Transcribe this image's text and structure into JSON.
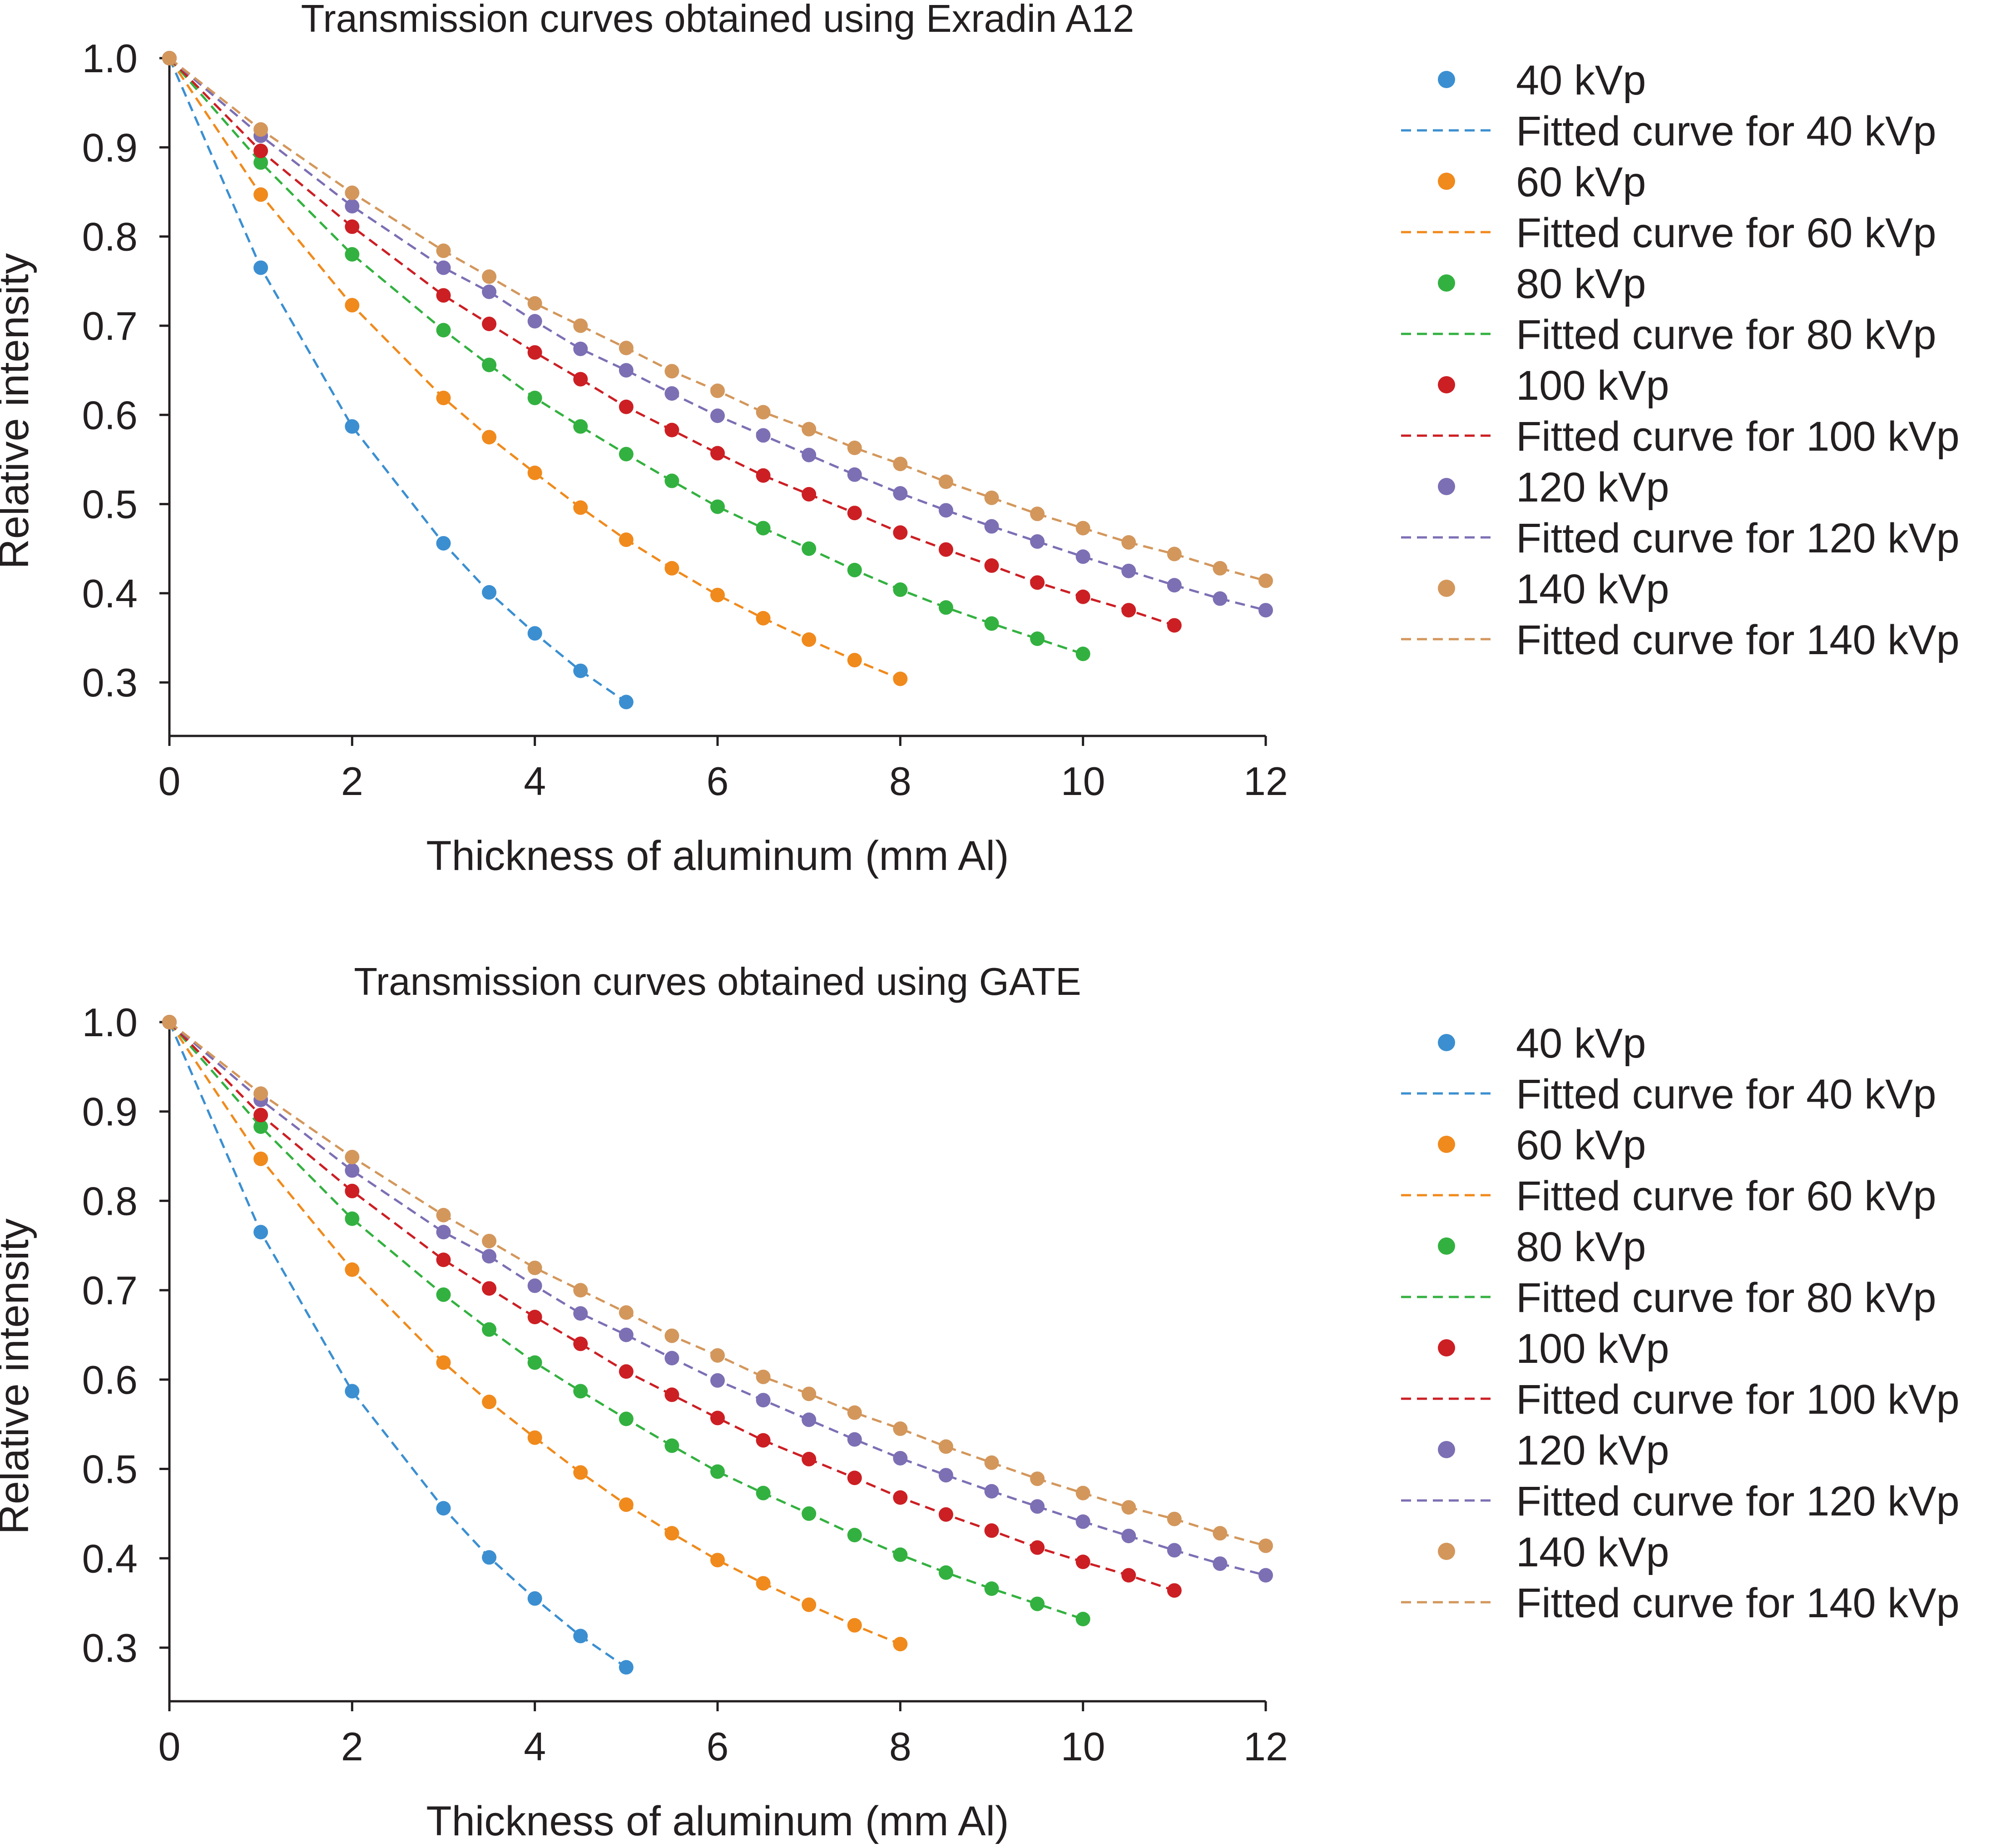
{
  "chart_data": [
    {
      "type": "scatter",
      "title": "Transmission curves obtained using Exradin A12",
      "xlabel": "Thickness of aluminum (mm Al)",
      "ylabel": "Relative intensity",
      "xlim": [
        0,
        12
      ],
      "ylim": [
        0.24,
        1.0
      ],
      "xticks": [
        0,
        2,
        4,
        6,
        8,
        10,
        12
      ],
      "yticks": [
        0.3,
        0.4,
        0.5,
        0.6,
        0.7,
        0.8,
        0.9,
        1.0
      ],
      "xtick_labels": [
        "0",
        "2",
        "4",
        "6",
        "8",
        "10",
        "12"
      ],
      "ytick_labels": [
        "0.3",
        "0.4",
        "0.5",
        "0.6",
        "0.7",
        "0.8",
        "0.9",
        "1.0"
      ],
      "legend_position": "right",
      "series": [
        {
          "name": "40 kVp",
          "fit_name": "Fitted curve for 40 kVp",
          "color": "#3b8fd1",
          "x": [
            0,
            1,
            2,
            3,
            3.5,
            4,
            4.5,
            5
          ],
          "y": [
            1.0,
            0.765,
            0.587,
            0.456,
            0.401,
            0.355,
            0.313,
            0.278
          ]
        },
        {
          "name": "60 kVp",
          "fit_name": "Fitted curve for 60 kVp",
          "color": "#f08a1c",
          "x": [
            0,
            1,
            2,
            3,
            3.5,
            4,
            4.5,
            5,
            5.5,
            6,
            6.5,
            7,
            7.5,
            8
          ],
          "y": [
            1.0,
            0.847,
            0.723,
            0.619,
            0.575,
            0.535,
            0.496,
            0.46,
            0.428,
            0.398,
            0.372,
            0.348,
            0.325,
            0.304
          ]
        },
        {
          "name": "80 kVp",
          "fit_name": "Fitted curve for 80 kVp",
          "color": "#33b140",
          "x": [
            0,
            1,
            2,
            3,
            3.5,
            4,
            4.5,
            5,
            5.5,
            6,
            6.5,
            7,
            7.5,
            8,
            8.5,
            9,
            9.5,
            10
          ],
          "y": [
            1.0,
            0.883,
            0.78,
            0.695,
            0.656,
            0.619,
            0.587,
            0.556,
            0.526,
            0.497,
            0.473,
            0.45,
            0.426,
            0.404,
            0.384,
            0.366,
            0.349,
            0.332
          ]
        },
        {
          "name": "100 kVp",
          "fit_name": "Fitted curve for 100 kVp",
          "color": "#cc1f24",
          "x": [
            0,
            1,
            2,
            3,
            3.5,
            4,
            4.5,
            5,
            5.5,
            6,
            6.5,
            7,
            7.5,
            8,
            8.5,
            9,
            9.5,
            10,
            10.5,
            11
          ],
          "y": [
            1.0,
            0.896,
            0.811,
            0.734,
            0.702,
            0.67,
            0.64,
            0.609,
            0.583,
            0.557,
            0.532,
            0.511,
            0.49,
            0.468,
            0.449,
            0.431,
            0.412,
            0.396,
            0.381,
            0.364
          ]
        },
        {
          "name": "120 kVp",
          "fit_name": "Fitted curve for 120 kVp",
          "color": "#7d6fb4",
          "x": [
            0,
            1,
            2,
            3,
            3.5,
            4,
            4.5,
            5,
            5.5,
            6,
            6.5,
            7,
            7.5,
            8,
            8.5,
            9,
            9.5,
            10,
            10.5,
            11,
            11.5,
            12
          ],
          "y": [
            1.0,
            0.913,
            0.834,
            0.765,
            0.738,
            0.705,
            0.674,
            0.65,
            0.624,
            0.599,
            0.577,
            0.555,
            0.533,
            0.512,
            0.493,
            0.475,
            0.458,
            0.441,
            0.425,
            0.409,
            0.394,
            0.381
          ]
        },
        {
          "name": "140 kVp",
          "fit_name": "Fitted curve for 140 kVp",
          "color": "#d3975c",
          "x": [
            0,
            1,
            2,
            3,
            3.5,
            4,
            4.5,
            5,
            5.5,
            6,
            6.5,
            7,
            7.5,
            8,
            8.5,
            9,
            9.5,
            10,
            10.5,
            11,
            11.5,
            12
          ],
          "y": [
            1.0,
            0.92,
            0.849,
            0.784,
            0.755,
            0.725,
            0.7,
            0.675,
            0.649,
            0.627,
            0.603,
            0.584,
            0.563,
            0.545,
            0.525,
            0.507,
            0.489,
            0.473,
            0.457,
            0.444,
            0.428,
            0.414
          ]
        }
      ]
    },
    {
      "type": "scatter",
      "title": "Transmission curves obtained using GATE",
      "xlabel": "Thickness of aluminum (mm Al)",
      "ylabel": "Relative intensity",
      "xlim": [
        0,
        12
      ],
      "ylim": [
        0.24,
        1.0
      ],
      "xticks": [
        0,
        2,
        4,
        6,
        8,
        10,
        12
      ],
      "yticks": [
        0.3,
        0.4,
        0.5,
        0.6,
        0.7,
        0.8,
        0.9,
        1.0
      ],
      "xtick_labels": [
        "0",
        "2",
        "4",
        "6",
        "8",
        "10",
        "12"
      ],
      "ytick_labels": [
        "0.3",
        "0.4",
        "0.5",
        "0.6",
        "0.7",
        "0.8",
        "0.9",
        "1.0"
      ],
      "legend_position": "right",
      "series": [
        {
          "name": "40 kVp",
          "fit_name": "Fitted curve for 40 kVp",
          "color": "#3b8fd1",
          "x": [
            0,
            1,
            2,
            3,
            3.5,
            4,
            4.5,
            5
          ],
          "y": [
            1.0,
            0.765,
            0.587,
            0.456,
            0.401,
            0.355,
            0.313,
            0.278
          ]
        },
        {
          "name": "60 kVp",
          "fit_name": "Fitted curve for 60 kVp",
          "color": "#f08a1c",
          "x": [
            0,
            1,
            2,
            3,
            3.5,
            4,
            4.5,
            5,
            5.5,
            6,
            6.5,
            7,
            7.5,
            8
          ],
          "y": [
            1.0,
            0.847,
            0.723,
            0.619,
            0.575,
            0.535,
            0.496,
            0.46,
            0.428,
            0.398,
            0.372,
            0.348,
            0.325,
            0.304
          ]
        },
        {
          "name": "80 kVp",
          "fit_name": "Fitted curve for 80 kVp",
          "color": "#33b140",
          "x": [
            0,
            1,
            2,
            3,
            3.5,
            4,
            4.5,
            5,
            5.5,
            6,
            6.5,
            7,
            7.5,
            8,
            8.5,
            9,
            9.5,
            10
          ],
          "y": [
            1.0,
            0.883,
            0.78,
            0.695,
            0.656,
            0.619,
            0.587,
            0.556,
            0.526,
            0.497,
            0.473,
            0.45,
            0.426,
            0.404,
            0.384,
            0.366,
            0.349,
            0.332
          ]
        },
        {
          "name": "100 kVp",
          "fit_name": "Fitted curve for 100 kVp",
          "color": "#cc1f24",
          "x": [
            0,
            1,
            2,
            3,
            3.5,
            4,
            4.5,
            5,
            5.5,
            6,
            6.5,
            7,
            7.5,
            8,
            8.5,
            9,
            9.5,
            10,
            10.5,
            11
          ],
          "y": [
            1.0,
            0.896,
            0.811,
            0.734,
            0.702,
            0.67,
            0.64,
            0.609,
            0.583,
            0.557,
            0.532,
            0.511,
            0.49,
            0.468,
            0.449,
            0.431,
            0.412,
            0.396,
            0.381,
            0.364
          ]
        },
        {
          "name": "120 kVp",
          "fit_name": "Fitted curve for 120 kVp",
          "color": "#7d6fb4",
          "x": [
            0,
            1,
            2,
            3,
            3.5,
            4,
            4.5,
            5,
            5.5,
            6,
            6.5,
            7,
            7.5,
            8,
            8.5,
            9,
            9.5,
            10,
            10.5,
            11,
            11.5,
            12
          ],
          "y": [
            1.0,
            0.913,
            0.834,
            0.765,
            0.738,
            0.705,
            0.674,
            0.65,
            0.624,
            0.599,
            0.577,
            0.555,
            0.533,
            0.512,
            0.493,
            0.475,
            0.458,
            0.441,
            0.425,
            0.409,
            0.394,
            0.381
          ]
        },
        {
          "name": "140 kVp",
          "fit_name": "Fitted curve for 140 kVp",
          "color": "#d3975c",
          "x": [
            0,
            1,
            2,
            3,
            3.5,
            4,
            4.5,
            5,
            5.5,
            6,
            6.5,
            7,
            7.5,
            8,
            8.5,
            9,
            9.5,
            10,
            10.5,
            11,
            11.5,
            12
          ],
          "y": [
            1.0,
            0.92,
            0.849,
            0.784,
            0.755,
            0.725,
            0.7,
            0.675,
            0.649,
            0.627,
            0.603,
            0.584,
            0.563,
            0.545,
            0.525,
            0.507,
            0.489,
            0.473,
            0.457,
            0.444,
            0.428,
            0.414
          ]
        }
      ]
    }
  ]
}
